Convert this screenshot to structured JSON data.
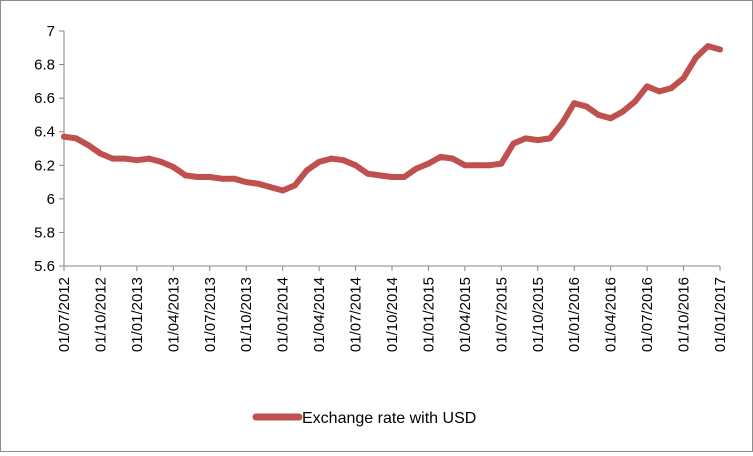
{
  "chart_data": {
    "type": "line",
    "title": "",
    "xlabel": "",
    "ylabel": "",
    "ylim": [
      5.6,
      7.0
    ],
    "y_ticks": [
      "5.6",
      "5.8",
      "6",
      "6.2",
      "6.4",
      "6.6",
      "6.8",
      "7"
    ],
    "x_tick_labels": [
      "01/07/2012",
      "01/10/2012",
      "01/01/2013",
      "01/04/2013",
      "01/07/2013",
      "01/10/2013",
      "01/01/2014",
      "01/04/2014",
      "01/07/2014",
      "01/10/2014",
      "01/01/2015",
      "01/04/2015",
      "01/07/2015",
      "01/10/2015",
      "01/01/2016",
      "01/04/2016",
      "01/07/2016",
      "01/10/2016",
      "01/01/2017"
    ],
    "grid": false,
    "legend_position": "bottom",
    "series": [
      {
        "name": "Exchange rate with USD",
        "color": "#c0504d",
        "x": [
          "2012-07",
          "2012-08",
          "2012-09",
          "2012-10",
          "2012-11",
          "2012-12",
          "2013-01",
          "2013-02",
          "2013-03",
          "2013-04",
          "2013-05",
          "2013-06",
          "2013-07",
          "2013-08",
          "2013-09",
          "2013-10",
          "2013-11",
          "2013-12",
          "2014-01",
          "2014-02",
          "2014-03",
          "2014-04",
          "2014-05",
          "2014-06",
          "2014-07",
          "2014-08",
          "2014-09",
          "2014-10",
          "2014-11",
          "2014-12",
          "2015-01",
          "2015-02",
          "2015-03",
          "2015-04",
          "2015-05",
          "2015-06",
          "2015-07",
          "2015-08",
          "2015-09",
          "2015-10",
          "2015-11",
          "2015-12",
          "2016-01",
          "2016-02",
          "2016-03",
          "2016-04",
          "2016-05",
          "2016-06",
          "2016-07",
          "2016-08",
          "2016-09",
          "2016-10",
          "2016-11",
          "2016-12",
          "2017-01"
        ],
        "values": [
          6.37,
          6.36,
          6.32,
          6.27,
          6.24,
          6.24,
          6.23,
          6.24,
          6.22,
          6.19,
          6.14,
          6.13,
          6.13,
          6.12,
          6.12,
          6.1,
          6.09,
          6.07,
          6.05,
          6.08,
          6.17,
          6.22,
          6.24,
          6.23,
          6.2,
          6.15,
          6.14,
          6.13,
          6.13,
          6.18,
          6.21,
          6.25,
          6.24,
          6.2,
          6.2,
          6.2,
          6.21,
          6.33,
          6.36,
          6.35,
          6.36,
          6.45,
          6.57,
          6.55,
          6.5,
          6.48,
          6.52,
          6.58,
          6.67,
          6.64,
          6.66,
          6.72,
          6.84,
          6.91,
          6.89
        ]
      }
    ]
  }
}
